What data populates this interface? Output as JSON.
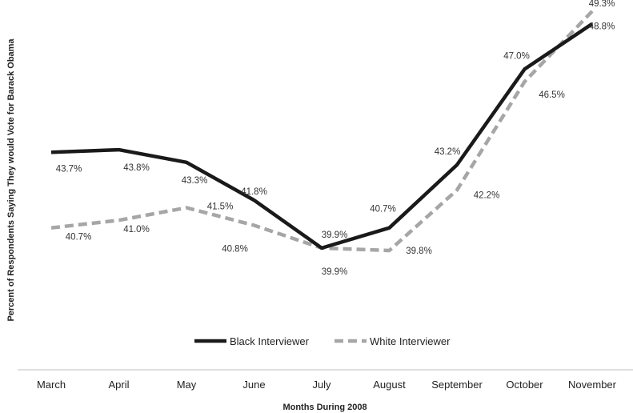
{
  "chart_data": {
    "type": "line",
    "categories": [
      "March",
      "April",
      "May",
      "June",
      "July",
      "August",
      "September",
      "October",
      "November"
    ],
    "series": [
      {
        "name": "Black Interviewer",
        "values": [
          43.7,
          43.8,
          43.3,
          41.8,
          39.9,
          40.7,
          43.2,
          47.0,
          48.8
        ],
        "labels": [
          "43.7%",
          "43.8%",
          "43.3%",
          "41.8%",
          "39.9%",
          "40.7%",
          "43.2%",
          "47.0%",
          "48.8%"
        ],
        "color": "#1a1a1a",
        "style": "solid"
      },
      {
        "name": "White Interviewer",
        "values": [
          40.7,
          41.0,
          41.5,
          40.8,
          39.9,
          39.8,
          42.2,
          46.5,
          49.3
        ],
        "labels": [
          "40.7%",
          "41.0%",
          "41.5%",
          "40.8%",
          "39.9%",
          "39.8%",
          "42.2%",
          "46.5%",
          "49.3%"
        ],
        "color": "#a6a6a6",
        "style": "dashed"
      }
    ],
    "xlabel": "Months During 2008",
    "ylabel": "Percent of Respondents Saying They would Vote for Barack Obama",
    "title": "",
    "grid": false,
    "legend_position": "bottom-center"
  }
}
